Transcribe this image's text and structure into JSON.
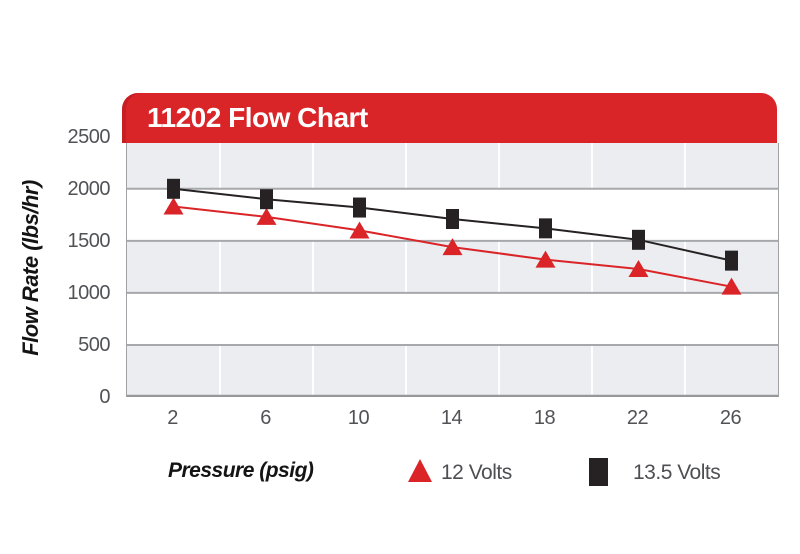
{
  "header": {
    "title": "11202 Flow Chart"
  },
  "chart_data": {
    "type": "line",
    "title": "11202 Flow Chart",
    "xlabel": "Pressure (psig)",
    "ylabel": "Flow Rate (lbs/hr)",
    "categories": [
      2,
      6,
      10,
      14,
      18,
      22,
      26
    ],
    "x_tick_labels": [
      "2",
      "6",
      "10",
      "14",
      "18",
      "22",
      "26"
    ],
    "y_ticks": [
      0,
      500,
      1000,
      1500,
      2000,
      2500
    ],
    "ylim": [
      0,
      2500
    ],
    "grid": true,
    "legend_position": "bottom",
    "series": [
      {
        "name": "12 Volts",
        "marker": "triangle",
        "color": "#da2428",
        "values": [
          1830,
          1730,
          1600,
          1440,
          1320,
          1230,
          1060
        ]
      },
      {
        "name": "13.5 Volts",
        "marker": "square",
        "color": "#262223",
        "values": [
          2000,
          1900,
          1820,
          1710,
          1620,
          1510,
          1310
        ]
      }
    ],
    "colors": {
      "header_red": "#d92428",
      "band_gray": "#ebedf0",
      "h_gridline": "#a6a8ab",
      "v_gridline": "#ffffff",
      "axis_line": "#96979a",
      "tick_text": "#515255"
    }
  }
}
